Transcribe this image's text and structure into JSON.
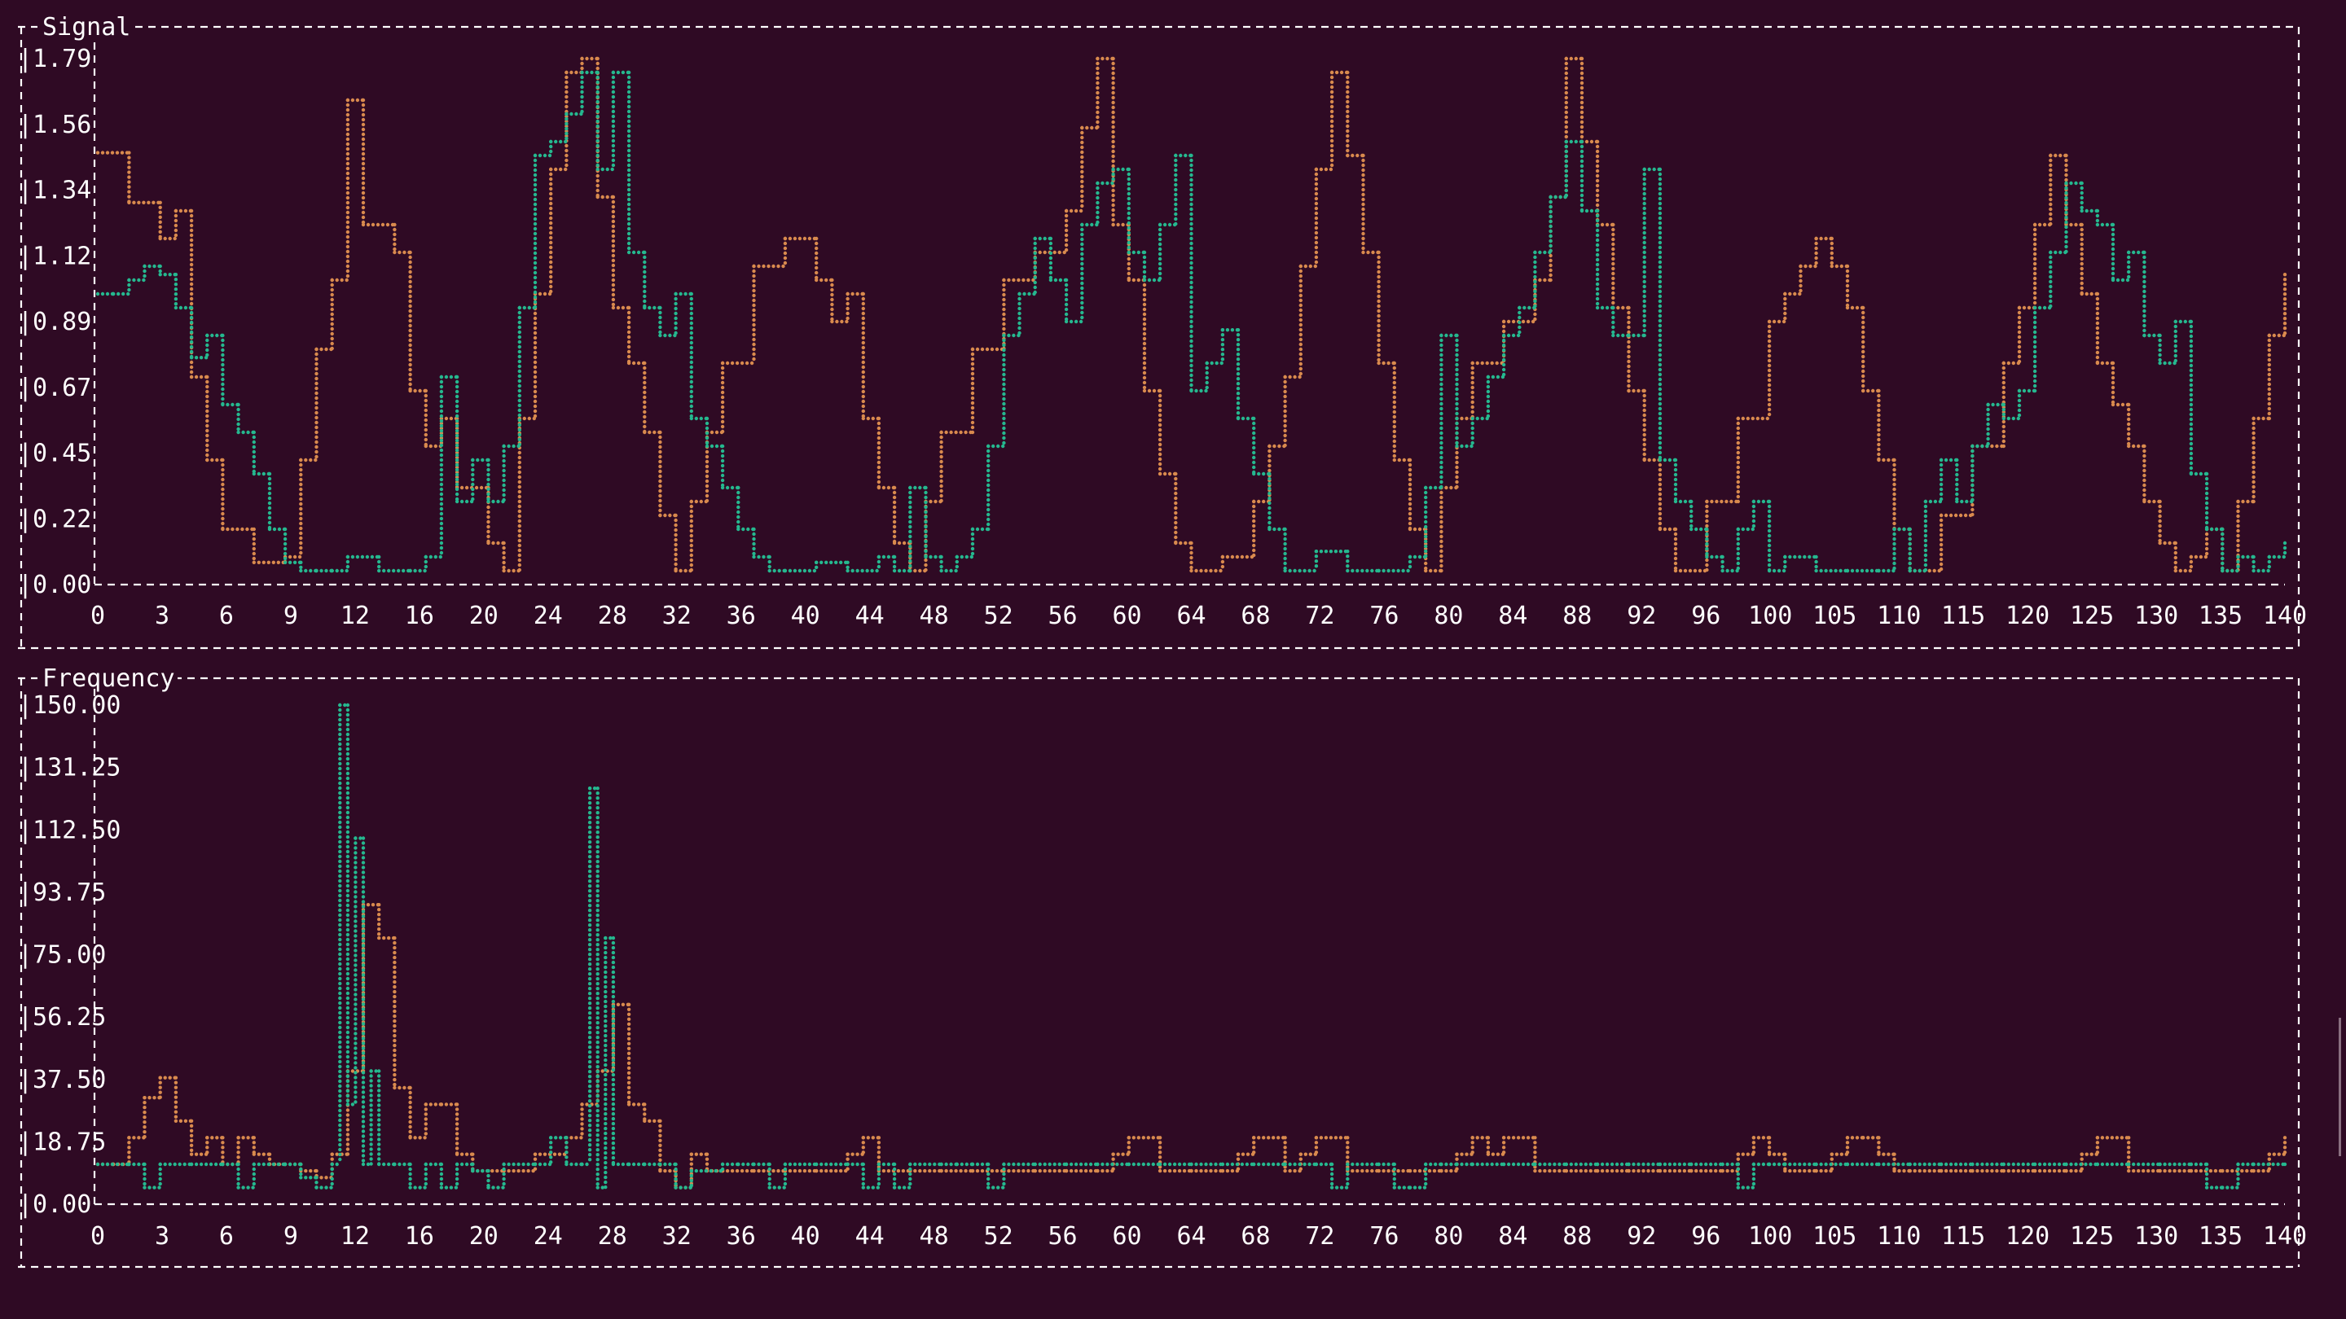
{
  "colors": {
    "background": "#2f0a24",
    "text": "#ffffff",
    "series_a": "#d98a4e",
    "series_b": "#25b88f"
  },
  "chart_data": [
    {
      "type": "line",
      "title": "Signal",
      "ylim": [
        0,
        1.9
      ],
      "xlim": [
        0,
        140
      ],
      "ytick_labels": [
        "0.00",
        "0.22",
        "0.45",
        "0.67",
        "0.89",
        "1.12",
        "1.34",
        "1.56",
        "1.79"
      ],
      "xtick_labels": [
        "0",
        "3",
        "6",
        "9",
        "12",
        "16",
        "20",
        "24",
        "28",
        "32",
        "36",
        "40",
        "44",
        "48",
        "52",
        "56",
        "60",
        "64",
        "68",
        "72",
        "76",
        "80",
        "84",
        "88",
        "92",
        "96",
        "100",
        "105",
        "110",
        "115",
        "120",
        "125",
        "130",
        "135",
        "140"
      ],
      "grid": false,
      "series": [
        {
          "color": "#d98a4e",
          "x": [
            0,
            2,
            4,
            5,
            6,
            7,
            8,
            10,
            12,
            13,
            14,
            15,
            16,
            17,
            19,
            20,
            21,
            22,
            23,
            25,
            26,
            27,
            28,
            29,
            30,
            31,
            32,
            33,
            34,
            35,
            36,
            37,
            38,
            39,
            40,
            42,
            44,
            46,
            47,
            48,
            49,
            50,
            51,
            52,
            53,
            54,
            56,
            58,
            60,
            62,
            63,
            64,
            65,
            66,
            67,
            68,
            69,
            70,
            72,
            74,
            75,
            76,
            77,
            78,
            79,
            80,
            81,
            82,
            83,
            84,
            85,
            86,
            87,
            88,
            90,
            92,
            93,
            94,
            95,
            96,
            97,
            98,
            99,
            100,
            101,
            103,
            105,
            107,
            108,
            109,
            110,
            111,
            112,
            113,
            114,
            115,
            116,
            118,
            120,
            122,
            123,
            124,
            125,
            126,
            127,
            128,
            129,
            130,
            131,
            132,
            133,
            134,
            135,
            136,
            137,
            138,
            139,
            140
          ],
          "y": [
            1.56,
            1.38,
            1.25,
            1.35,
            0.75,
            0.45,
            0.2,
            0.08,
            0.1,
            0.45,
            0.85,
            1.1,
            1.75,
            1.3,
            1.2,
            0.7,
            0.5,
            0.6,
            0.35,
            0.15,
            0.05,
            0.6,
            1.05,
            1.5,
            1.85,
            1.9,
            1.4,
            1.0,
            0.8,
            0.55,
            0.25,
            0.05,
            0.3,
            0.55,
            0.8,
            1.15,
            1.25,
            1.1,
            0.95,
            1.05,
            0.6,
            0.35,
            0.15,
            0.05,
            0.3,
            0.55,
            0.85,
            1.1,
            1.2,
            1.35,
            1.65,
            1.9,
            1.3,
            1.1,
            0.7,
            0.4,
            0.15,
            0.05,
            0.1,
            0.3,
            0.5,
            0.75,
            1.15,
            1.5,
            1.85,
            1.55,
            1.2,
            0.8,
            0.45,
            0.2,
            0.05,
            0.35,
            0.6,
            0.8,
            0.95,
            1.1,
            1.4,
            1.9,
            1.6,
            1.3,
            1.0,
            0.7,
            0.45,
            0.2,
            0.05,
            0.3,
            0.6,
            0.95,
            1.05,
            1.15,
            1.25,
            1.15,
            1.0,
            0.7,
            0.45,
            0.2,
            0.05,
            0.25,
            0.5,
            0.8,
            1.0,
            1.3,
            1.55,
            1.3,
            1.05,
            0.8,
            0.65,
            0.5,
            0.3,
            0.15,
            0.05,
            0.1,
            0.2,
            0.05,
            0.3,
            0.6,
            0.9,
            1.12
          ]
        },
        {
          "color": "#25b88f",
          "x": [
            0,
            1,
            2,
            3,
            4,
            5,
            6,
            7,
            8,
            9,
            10,
            11,
            12,
            13,
            14,
            15,
            16,
            18,
            20,
            21,
            22,
            23,
            24,
            25,
            26,
            27,
            28,
            29,
            30,
            31,
            32,
            33,
            34,
            35,
            36,
            37,
            38,
            39,
            40,
            41,
            42,
            43,
            44,
            46,
            48,
            50,
            51,
            52,
            53,
            54,
            55,
            56,
            57,
            58,
            59,
            60,
            61,
            62,
            63,
            64,
            65,
            66,
            67,
            68,
            69,
            70,
            71,
            72,
            73,
            74,
            75,
            76,
            78,
            80,
            82,
            84,
            85,
            86,
            87,
            88,
            89,
            90,
            91,
            92,
            93,
            94,
            95,
            96,
            97,
            98,
            99,
            100,
            101,
            102,
            103,
            104,
            105,
            106,
            107,
            108,
            110,
            112,
            114,
            115,
            116,
            117,
            118,
            119,
            120,
            121,
            122,
            123,
            124,
            125,
            126,
            127,
            128,
            129,
            130,
            131,
            132,
            133,
            134,
            135,
            136,
            137,
            138,
            139,
            140
          ],
          "y": [
            1.05,
            1.05,
            1.1,
            1.15,
            1.12,
            1.0,
            0.82,
            0.9,
            0.65,
            0.55,
            0.4,
            0.2,
            0.08,
            0.05,
            0.05,
            0.05,
            0.1,
            0.05,
            0.05,
            0.1,
            0.75,
            0.3,
            0.45,
            0.3,
            0.5,
            1.0,
            1.55,
            1.6,
            1.7,
            1.85,
            1.5,
            1.85,
            1.2,
            1.0,
            0.9,
            1.05,
            0.6,
            0.5,
            0.35,
            0.2,
            0.1,
            0.05,
            0.05,
            0.08,
            0.05,
            0.1,
            0.05,
            0.35,
            0.1,
            0.05,
            0.1,
            0.2,
            0.5,
            0.9,
            1.05,
            1.25,
            1.1,
            0.95,
            1.3,
            1.45,
            1.5,
            1.2,
            1.1,
            1.3,
            1.55,
            0.7,
            0.8,
            0.92,
            0.6,
            0.4,
            0.2,
            0.05,
            0.12,
            0.05,
            0.05,
            0.1,
            0.35,
            0.9,
            0.5,
            0.6,
            0.75,
            0.9,
            1.0,
            1.2,
            1.4,
            1.6,
            1.35,
            1.0,
            0.9,
            0.9,
            1.5,
            0.45,
            0.3,
            0.2,
            0.1,
            0.05,
            0.2,
            0.3,
            0.05,
            0.1,
            0.05,
            0.05,
            0.05,
            0.2,
            0.05,
            0.3,
            0.45,
            0.3,
            0.5,
            0.65,
            0.6,
            0.7,
            1.0,
            1.2,
            1.45,
            1.35,
            1.3,
            1.1,
            1.2,
            0.9,
            0.8,
            0.95,
            0.4,
            0.2,
            0.05,
            0.1,
            0.05,
            0.1,
            0.15
          ]
        }
      ]
    },
    {
      "type": "line",
      "title": "Frequency",
      "ylim": [
        0,
        150
      ],
      "xlim": [
        0,
        140
      ],
      "ytick_labels": [
        "0.00",
        "18.75",
        "37.50",
        "56.25",
        "75.00",
        "93.75",
        "112.50",
        "131.25",
        "150.00"
      ],
      "xtick_labels": [
        "0",
        "3",
        "6",
        "9",
        "12",
        "16",
        "20",
        "24",
        "28",
        "32",
        "36",
        "40",
        "44",
        "48",
        "52",
        "56",
        "60",
        "64",
        "68",
        "72",
        "76",
        "80",
        "84",
        "88",
        "92",
        "96",
        "100",
        "105",
        "110",
        "115",
        "120",
        "125",
        "130",
        "135",
        "140"
      ],
      "grid": false,
      "series": [
        {
          "color": "#d98a4e",
          "x": [
            0,
            1,
            2,
            3,
            4,
            5,
            6,
            7,
            8,
            9,
            10,
            11,
            12,
            13,
            14,
            15,
            16,
            17,
            18,
            19,
            20,
            21,
            22,
            23,
            24,
            26,
            28,
            30,
            31,
            32,
            33,
            34,
            35,
            36,
            37,
            38,
            39,
            40,
            42,
            44,
            46,
            48,
            49,
            50,
            52,
            54,
            56,
            58,
            60,
            62,
            64,
            65,
            66,
            68,
            70,
            72,
            73,
            74,
            76,
            77,
            78,
            80,
            82,
            84,
            86,
            87,
            88,
            89,
            90,
            92,
            94,
            96,
            98,
            100,
            102,
            104,
            105,
            106,
            107,
            108,
            110,
            111,
            112,
            113,
            114,
            115,
            116,
            118,
            120,
            122,
            124,
            126,
            127,
            128,
            130,
            132,
            134,
            136,
            138,
            139,
            140
          ],
          "y": [
            12,
            12,
            20,
            32,
            38,
            25,
            15,
            20,
            12,
            20,
            15,
            12,
            12,
            10,
            8,
            15,
            40,
            90,
            80,
            35,
            20,
            30,
            30,
            15,
            10,
            10,
            15,
            20,
            30,
            40,
            60,
            30,
            25,
            10,
            5,
            15,
            10,
            10,
            10,
            10,
            10,
            15,
            20,
            10,
            10,
            10,
            10,
            10,
            10,
            10,
            10,
            15,
            20,
            10,
            10,
            10,
            15,
            20,
            10,
            15,
            20,
            10,
            10,
            10,
            10,
            15,
            20,
            15,
            20,
            10,
            10,
            10,
            10,
            10,
            10,
            10,
            15,
            20,
            15,
            10,
            10,
            15,
            20,
            20,
            15,
            10,
            10,
            10,
            10,
            10,
            10,
            10,
            15,
            20,
            10,
            10,
            10,
            10,
            10,
            15,
            20
          ]
        },
        {
          "color": "#25b88f",
          "x": [
            0,
            2,
            3,
            4,
            6,
            8,
            9,
            10,
            12,
            13,
            14,
            15,
            15.5,
            16,
            16.5,
            17,
            17.5,
            18,
            19,
            20,
            21,
            22,
            23,
            24,
            25,
            26,
            28,
            29,
            30,
            31,
            31.5,
            32,
            32.5,
            33,
            34,
            35,
            36,
            37,
            38,
            40,
            41,
            42,
            43,
            44,
            46,
            48,
            49,
            50,
            51,
            52,
            54,
            55,
            56,
            57,
            58,
            60,
            62,
            64,
            66,
            68,
            70,
            72,
            74,
            76,
            78,
            79,
            80,
            82,
            83,
            84,
            85,
            86,
            87,
            88,
            90,
            92,
            94,
            96,
            98,
            100,
            102,
            104,
            105,
            106,
            107,
            108,
            110,
            112,
            114,
            116,
            118,
            120,
            122,
            124,
            126,
            128,
            130,
            132,
            134,
            135,
            136,
            137,
            138,
            140
          ],
          "y": [
            12,
            12,
            5,
            12,
            12,
            12,
            5,
            12,
            12,
            8,
            5,
            12,
            150,
            30,
            110,
            12,
            40,
            12,
            12,
            5,
            12,
            5,
            12,
            10,
            5,
            12,
            12,
            20,
            12,
            12,
            125,
            5,
            80,
            12,
            12,
            12,
            12,
            5,
            10,
            12,
            12,
            12,
            5,
            12,
            12,
            12,
            5,
            12,
            5,
            12,
            12,
            12,
            12,
            5,
            12,
            12,
            12,
            12,
            12,
            12,
            12,
            12,
            12,
            12,
            12,
            5,
            12,
            12,
            5,
            5,
            12,
            12,
            12,
            12,
            12,
            12,
            12,
            12,
            12,
            12,
            12,
            12,
            5,
            12,
            12,
            12,
            12,
            12,
            12,
            12,
            12,
            12,
            12,
            12,
            12,
            12,
            12,
            12,
            12,
            5,
            5,
            12,
            12,
            12
          ]
        }
      ]
    }
  ]
}
